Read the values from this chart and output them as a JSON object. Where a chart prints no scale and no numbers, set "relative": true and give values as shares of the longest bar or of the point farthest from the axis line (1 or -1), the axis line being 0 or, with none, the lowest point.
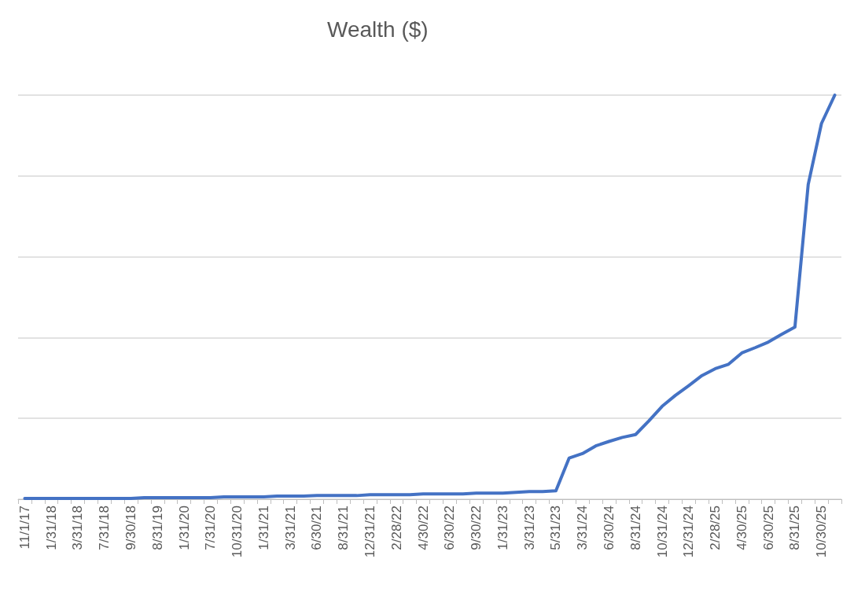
{
  "chart_data": {
    "type": "line",
    "title": "Wealth ($)",
    "relative": true,
    "grid": "y",
    "tick_labels": "x",
    "marker": "none",
    "line_style": "solid",
    "categories": [
      "11/1/17",
      null,
      "1/31/18",
      null,
      "3/31/18",
      null,
      "7/31/18",
      null,
      "9/30/18",
      null,
      "8/31/19",
      null,
      "1/31/20",
      null,
      "7/31/20",
      null,
      "10/31/20",
      null,
      "1/31/21",
      null,
      "3/31/21",
      null,
      "6/30/21",
      null,
      "8/31/21",
      null,
      "12/31/21",
      null,
      "2/28/22",
      null,
      "4/30/22",
      null,
      "6/30/22",
      null,
      "9/30/22",
      null,
      "1/31/23",
      null,
      "3/31/23",
      null,
      "5/31/23",
      null,
      "3/31/24",
      null,
      "6/30/24",
      null,
      "8/31/24",
      null,
      "10/31/24",
      null,
      "12/31/24",
      null,
      "2/28/25",
      null,
      "4/30/25",
      null,
      "6/30/25",
      null,
      "8/31/25",
      null,
      "10/30/25",
      null
    ],
    "series": [
      {
        "color": "#4472c4",
        "values": [
          0.002,
          0.002,
          0.002,
          0.002,
          0.002,
          0.002,
          0.002,
          0.002,
          0.002,
          0.004,
          0.004,
          0.004,
          0.004,
          0.004,
          0.004,
          0.006,
          0.006,
          0.006,
          0.006,
          0.008,
          0.008,
          0.008,
          0.009,
          0.009,
          0.009,
          0.009,
          0.011,
          0.011,
          0.011,
          0.011,
          0.013,
          0.013,
          0.013,
          0.013,
          0.015,
          0.015,
          0.015,
          0.017,
          0.019,
          0.019,
          0.021,
          0.102,
          0.113,
          0.132,
          0.143,
          0.153,
          0.16,
          0.194,
          0.23,
          0.257,
          0.281,
          0.306,
          0.323,
          0.334,
          0.362,
          0.375,
          0.389,
          0.408,
          0.426,
          0.779,
          0.93,
          1
        ]
      }
    ]
  }
}
